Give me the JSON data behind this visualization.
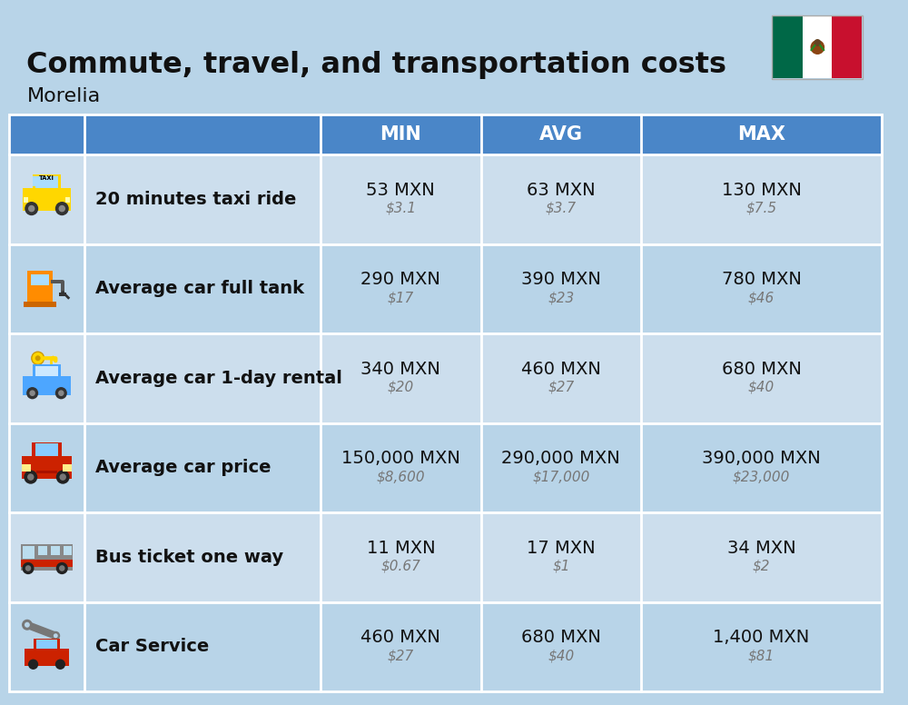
{
  "title": "Commute, travel, and transportation costs",
  "subtitle": "Morelia",
  "bg_color": "#b8d4e8",
  "header_bg": "#4a86c8",
  "header_text_color": "#ffffff",
  "row_bg_odd": "#ccdeed",
  "row_bg_even": "#b8d4e8",
  "cell_border_color": "#ffffff",
  "title_fontsize": 23,
  "subtitle_fontsize": 16,
  "header_fontsize": 15,
  "label_fontsize": 14,
  "value_fontsize": 14,
  "usd_fontsize": 11,
  "usd_color": "#777777",
  "rows": [
    {
      "label": "20 minutes taxi ride",
      "min_mxn": "53 MXN",
      "min_usd": "$3.1",
      "avg_mxn": "63 MXN",
      "avg_usd": "$3.7",
      "max_mxn": "130 MXN",
      "max_usd": "$7.5"
    },
    {
      "label": "Average car full tank",
      "min_mxn": "290 MXN",
      "min_usd": "$17",
      "avg_mxn": "390 MXN",
      "avg_usd": "$23",
      "max_mxn": "780 MXN",
      "max_usd": "$46"
    },
    {
      "label": "Average car 1-day rental",
      "min_mxn": "340 MXN",
      "min_usd": "$20",
      "avg_mxn": "460 MXN",
      "avg_usd": "$27",
      "max_mxn": "680 MXN",
      "max_usd": "$40"
    },
    {
      "label": "Average car price",
      "min_mxn": "150,000 MXN",
      "min_usd": "$8,600",
      "avg_mxn": "290,000 MXN",
      "avg_usd": "$17,000",
      "max_mxn": "390,000 MXN",
      "max_usd": "$23,000"
    },
    {
      "label": "Bus ticket one way",
      "min_mxn": "11 MXN",
      "min_usd": "$0.67",
      "avg_mxn": "17 MXN",
      "avg_usd": "$1",
      "max_mxn": "34 MXN",
      "max_usd": "$2"
    },
    {
      "label": "Car Service",
      "min_mxn": "460 MXN",
      "min_usd": "$27",
      "avg_mxn": "680 MXN",
      "avg_usd": "$40",
      "max_mxn": "1,400 MXN",
      "max_usd": "$81"
    }
  ]
}
